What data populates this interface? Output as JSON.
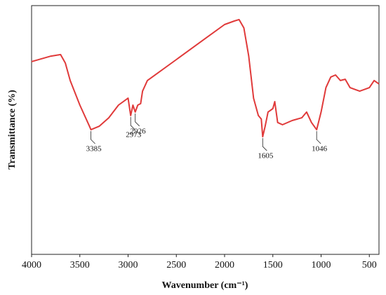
{
  "chart_data": {
    "type": "line",
    "x_label": "Wavenumber (cm⁻¹)",
    "y_label": "Transmittance (%)",
    "xlim": [
      4000,
      400
    ],
    "ylim": [
      0,
      100
    ],
    "xticks": [
      4000,
      3500,
      3000,
      2500,
      2000,
      1500,
      1000,
      500
    ],
    "x_reversed": true,
    "series": [
      {
        "color": "#e03a3a",
        "x": [
          4000,
          3800,
          3700,
          3650,
          3600,
          3500,
          3400,
          3385,
          3300,
          3200,
          3100,
          3000,
          2973,
          2950,
          2926,
          2900,
          2870,
          2850,
          2800,
          2700,
          2500,
          2200,
          2000,
          1900,
          1850,
          1800,
          1750,
          1700,
          1650,
          1620,
          1605,
          1580,
          1550,
          1500,
          1480,
          1450,
          1400,
          1300,
          1200,
          1150,
          1100,
          1046,
          1000,
          950,
          900,
          850,
          800,
          750,
          700,
          600,
          500,
          450,
          400
        ],
        "values": [
          77.5,
          79.7,
          80.3,
          76.9,
          69.9,
          60,
          51.5,
          50.1,
          51.5,
          54.9,
          60,
          62.8,
          55.8,
          60,
          57.2,
          60,
          60.6,
          65.6,
          69.9,
          72.7,
          78.3,
          86.8,
          92.4,
          93.8,
          94.4,
          91,
          79.7,
          62.8,
          55.8,
          54.4,
          47.3,
          51.5,
          57.2,
          58.6,
          61.4,
          53,
          52.1,
          53.8,
          54.9,
          57.2,
          53,
          50.1,
          57.2,
          67,
          71.3,
          72.1,
          69.9,
          70.4,
          67,
          65.6,
          67,
          69.9,
          68.5
        ]
      }
    ],
    "peaks": [
      {
        "x": 3385,
        "y": 50.1
      },
      {
        "x": 2973,
        "y": 55.8
      },
      {
        "x": 2926,
        "y": 57.2
      },
      {
        "x": 1605,
        "y": 47.3
      },
      {
        "x": 1046,
        "y": 50.1
      }
    ]
  }
}
